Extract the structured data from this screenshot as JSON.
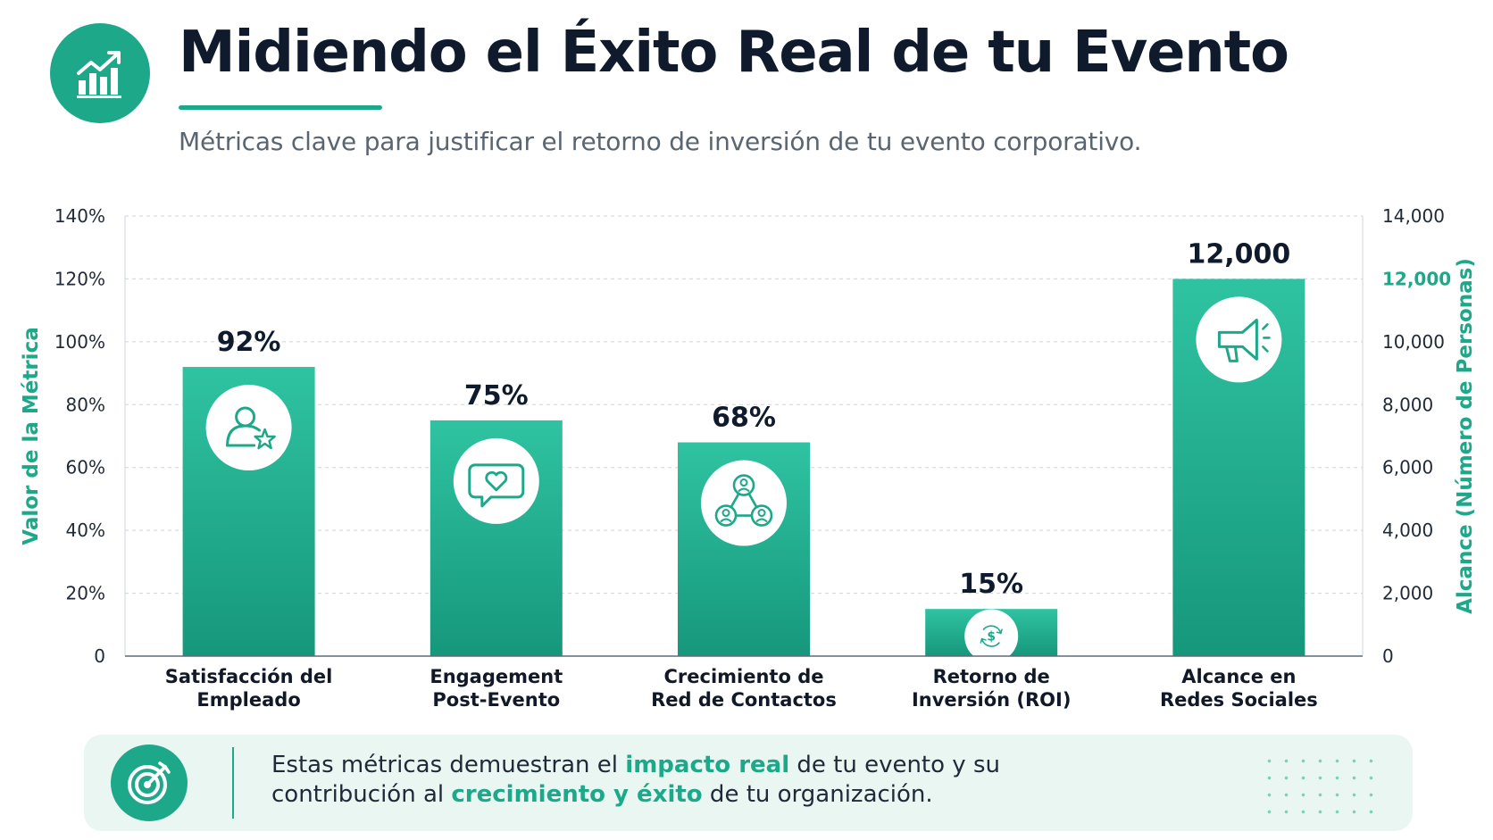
{
  "header": {
    "title": "Midiendo el Éxito Real de tu Evento",
    "subtitle": "Métricas clave para justificar el retorno de inversión de tu evento corporativo.",
    "icon": "growth-chart-icon"
  },
  "colors": {
    "accent": "#1ea88a",
    "bar_top": "#2fc3a1",
    "bar_bottom": "#16977b",
    "title": "#0f1b2d",
    "footer_bg": "#eaf6f2"
  },
  "chart_data": {
    "type": "bar",
    "categories": [
      "Satisfacción del Empleado",
      "Engagement Post-Evento",
      "Crecimiento de Red de Contactos",
      "Retorno de Inversión (ROI)",
      "Alcance en Redes Sociales"
    ],
    "category_lines": [
      [
        "Satisfacción del",
        "Empleado"
      ],
      [
        "Engagement",
        "Post-Evento"
      ],
      [
        "Crecimiento de",
        "Red de Contactos"
      ],
      [
        "Retorno de",
        "Inversión (ROI)"
      ],
      [
        "Alcance en",
        "Redes Sociales"
      ]
    ],
    "values": [
      92,
      75,
      68,
      15,
      12000
    ],
    "value_axis": [
      "left",
      "left",
      "left",
      "left",
      "right"
    ],
    "data_labels": [
      "92%",
      "75%",
      "68%",
      "15%",
      "12,000"
    ],
    "icons": [
      "user-star-icon",
      "heart-chat-icon",
      "network-icon",
      "dollar-cycle-icon",
      "megaphone-icon"
    ],
    "ylabel": "Valor de la Métrica",
    "ylim": [
      0,
      140
    ],
    "yticks": [
      "0",
      "20%",
      "40%",
      "60%",
      "80%",
      "100%",
      "120%",
      "140%"
    ],
    "y2label": "Alcance (Número de Personas)",
    "y2lim": [
      0,
      14000
    ],
    "y2ticks": [
      "0",
      "2,000",
      "4,000",
      "6,000",
      "8,000",
      "10,000",
      "12,000",
      "14,000"
    ],
    "y2_highlight_tick": "12,000",
    "grid": true
  },
  "footer": {
    "icon": "target-icon",
    "text_before": "Estas métricas demuestran el ",
    "highlight1": "impacto real",
    "text_middle": " de tu evento y su contribución al ",
    "highlight2": "crecimiento y éxito",
    "text_after": " de tu organización."
  }
}
